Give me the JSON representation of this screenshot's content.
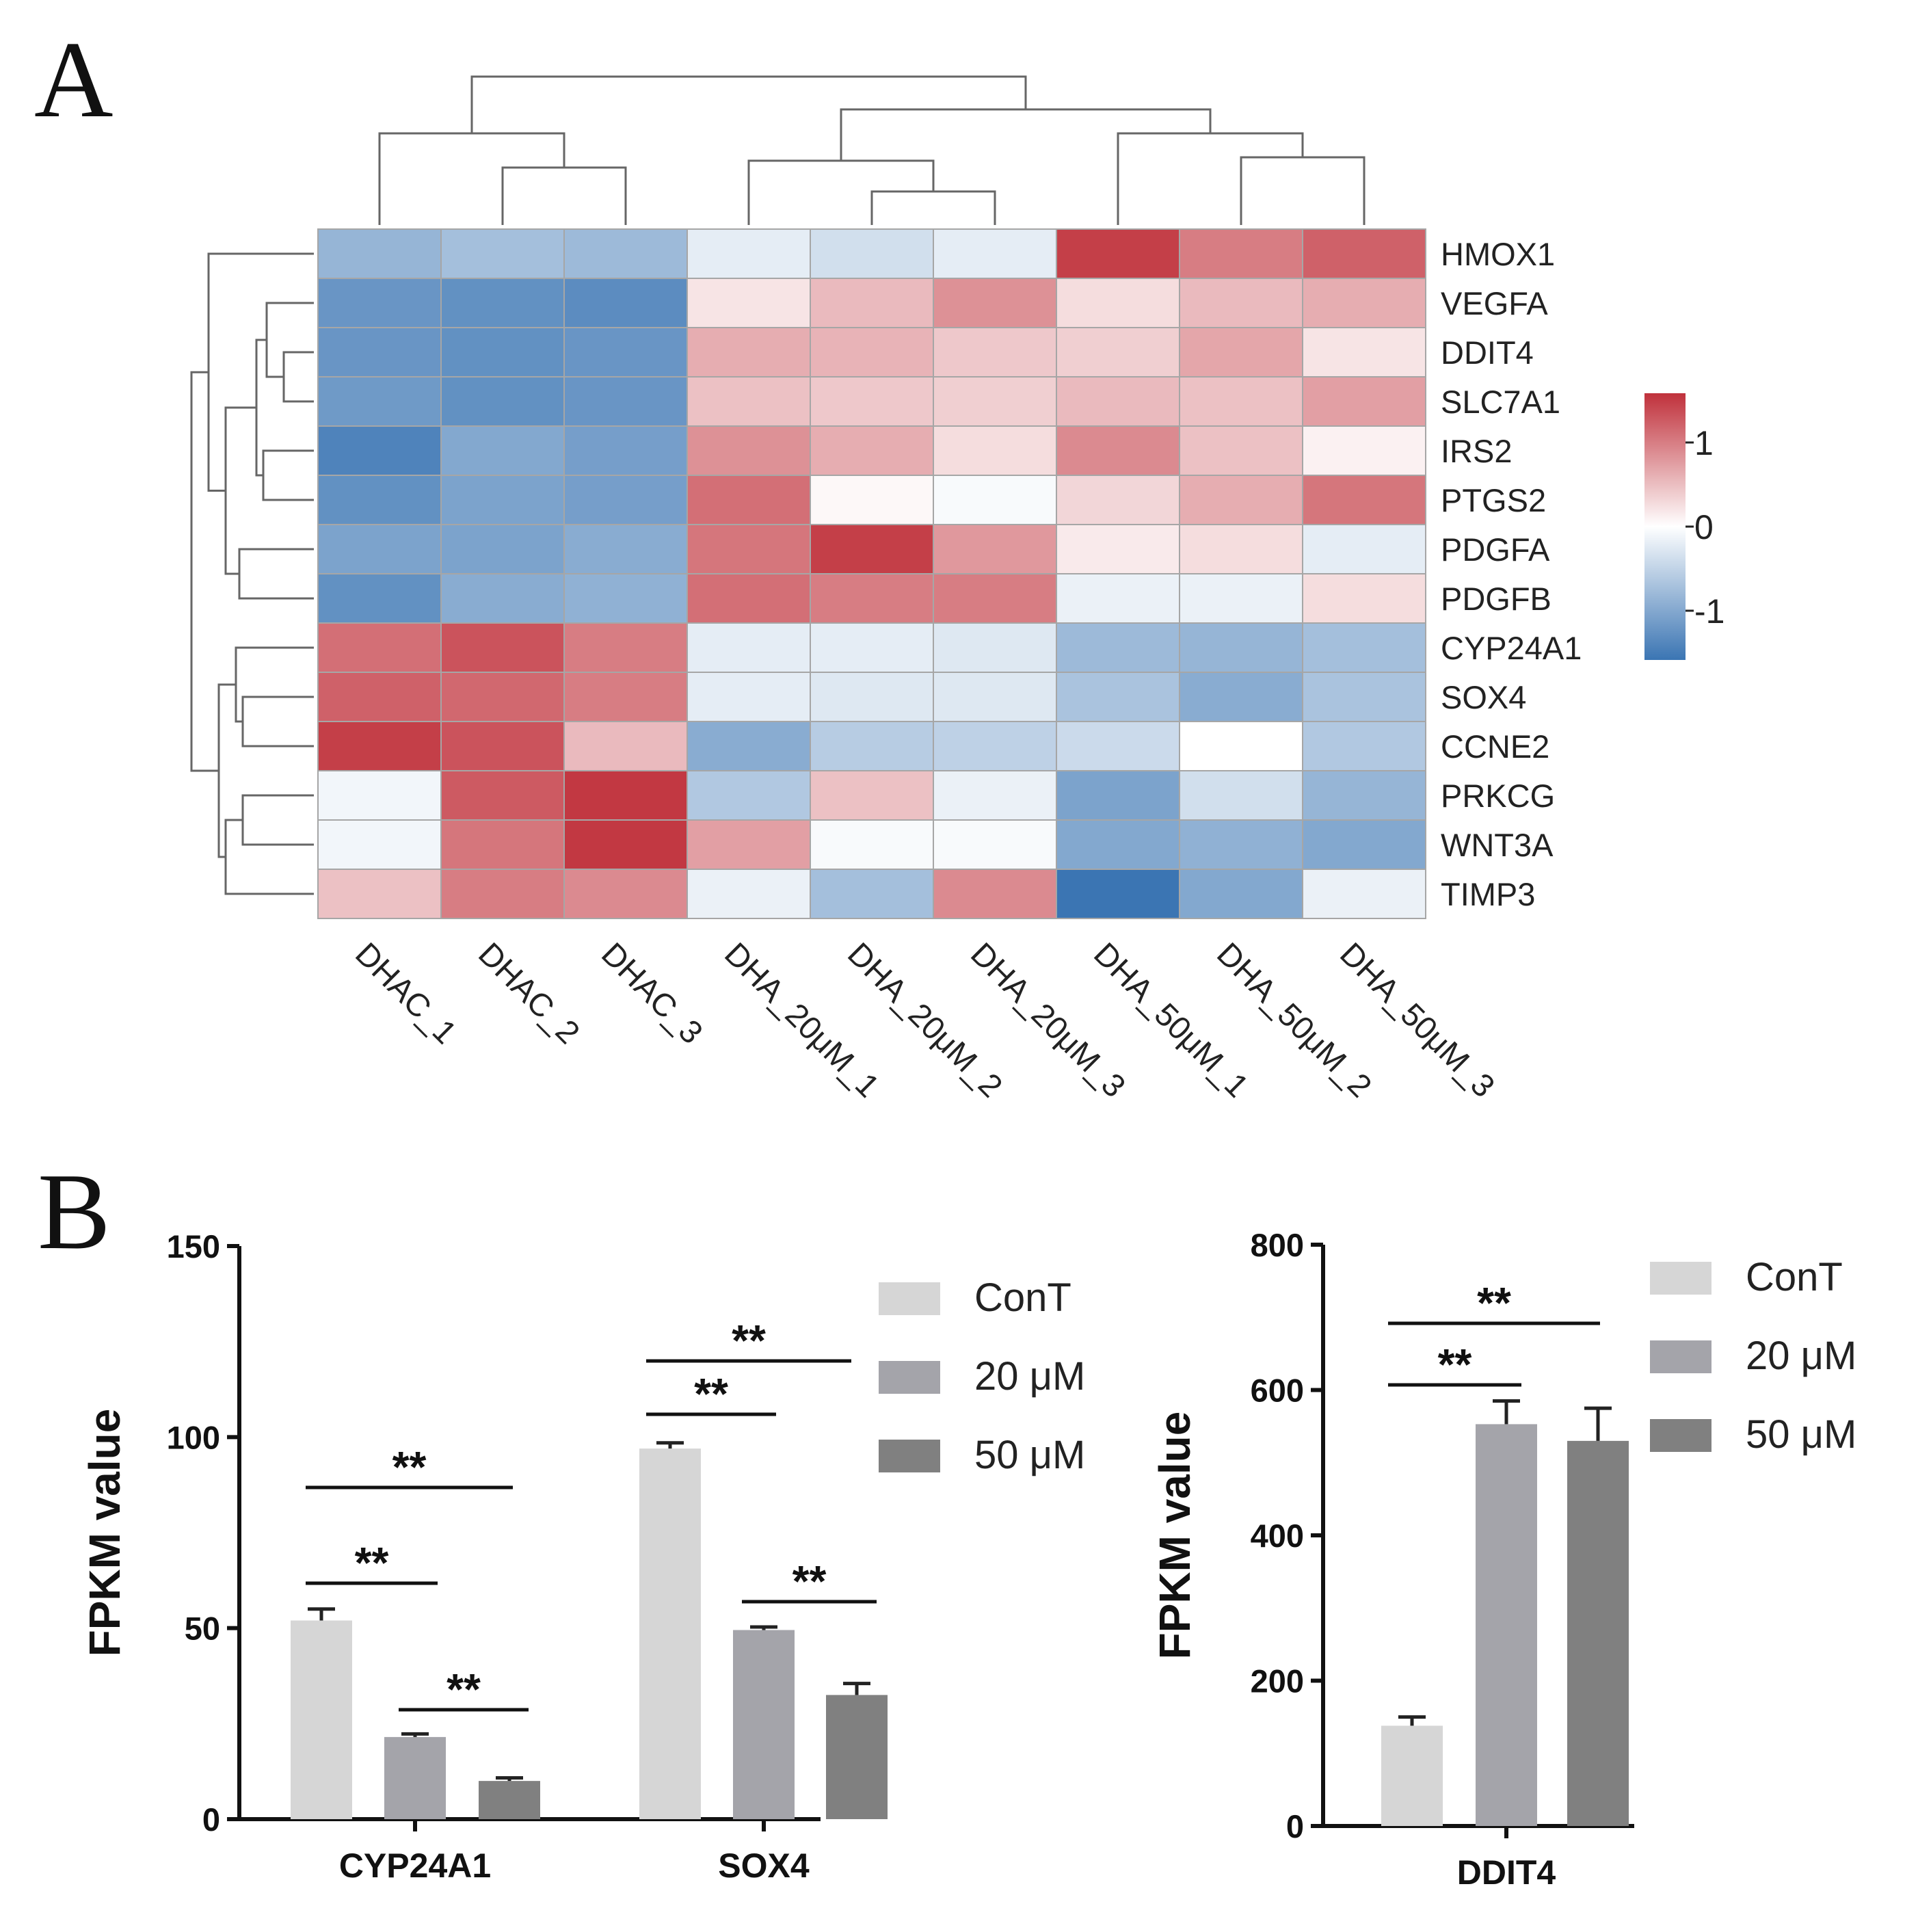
{
  "panels": {
    "a_label": "A",
    "b_label": "B"
  },
  "colors": {
    "heat_low": "#3b75b3",
    "heat_mid": "#ffffff",
    "heat_high": "#c0313b",
    "cell_border": "#a6a6a6",
    "dendrogram": "#666666",
    "bar_cont": "#d6d6d6",
    "bar_20": "#a4a4aa",
    "bar_50": "#808080"
  },
  "chart_data": [
    {
      "type": "heatmap",
      "rows": [
        "HMOX1",
        "VEGFA",
        "DDIT4",
        "SLC7A1",
        "IRS2",
        "PTGS2",
        "PDGFA",
        "PDGFB",
        "CYP24A1",
        "SOX4",
        "CCNE2",
        "PRKCG",
        "WNT3A",
        "TIMP3"
      ],
      "columns": [
        "DHAC_1",
        "DHAC_2",
        "DHAC_3",
        "DHA_20μM_1",
        "DHA_20μM_2",
        "DHA_20μM_3",
        "DHA_50μM_1",
        "DHA_50μM_2",
        "DHA_50μM_3"
      ],
      "values": [
        [
          -0.8,
          -0.7,
          -0.75,
          -0.2,
          -0.35,
          -0.2,
          1.4,
          0.95,
          1.15
        ],
        [
          -1.15,
          -1.2,
          -1.25,
          0.2,
          0.5,
          0.8,
          0.25,
          0.5,
          0.6
        ],
        [
          -1.15,
          -1.2,
          -1.15,
          0.6,
          0.55,
          0.4,
          0.35,
          0.65,
          0.2
        ],
        [
          -1.1,
          -1.2,
          -1.15,
          0.45,
          0.4,
          0.35,
          0.5,
          0.45,
          0.7
        ],
        [
          -1.35,
          -0.95,
          -1.05,
          0.8,
          0.6,
          0.25,
          0.85,
          0.45,
          0.1
        ],
        [
          -1.2,
          -1.0,
          -1.05,
          1.05,
          0.05,
          -0.05,
          0.3,
          0.6,
          1.0
        ],
        [
          -1.0,
          -1.0,
          -0.9,
          1.0,
          1.4,
          0.75,
          0.15,
          0.25,
          -0.2
        ],
        [
          -1.2,
          -0.9,
          -0.85,
          1.05,
          0.95,
          0.95,
          -0.15,
          -0.15,
          0.25
        ],
        [
          1.05,
          1.25,
          0.95,
          -0.2,
          -0.2,
          -0.25,
          -0.75,
          -0.8,
          -0.7
        ],
        [
          1.15,
          1.1,
          0.95,
          -0.2,
          -0.25,
          -0.25,
          -0.65,
          -0.9,
          -0.65
        ],
        [
          1.4,
          1.25,
          0.5,
          -0.9,
          -0.55,
          -0.5,
          -0.4,
          0.0,
          -0.6
        ],
        [
          -0.1,
          1.2,
          1.45,
          -0.6,
          0.45,
          -0.15,
          -1.0,
          -0.35,
          -0.8
        ],
        [
          -0.1,
          1.0,
          1.45,
          0.7,
          -0.05,
          -0.05,
          -0.95,
          -0.85,
          -0.95
        ],
        [
          0.45,
          0.95,
          0.85,
          -0.15,
          -0.7,
          0.85,
          -1.5,
          -0.95,
          -0.15
        ]
      ],
      "colorbar": {
        "ticks": [
          "1",
          "0",
          "-1"
        ],
        "range": [
          -1.5,
          1.5
        ]
      }
    },
    {
      "type": "bar",
      "categories": [
        "CYP24A1",
        "SOX4"
      ],
      "series": [
        {
          "name": "ConT",
          "values": [
            52,
            97
          ],
          "errors": [
            3,
            1.5
          ]
        },
        {
          "name": "20 μM",
          "values": [
            21.5,
            49.5
          ],
          "errors": [
            0.8,
            0.8
          ]
        },
        {
          "name": "50 μM",
          "values": [
            10,
            32.5
          ],
          "errors": [
            0.8,
            3
          ]
        }
      ],
      "ylabel": "FPKM value",
      "ylim": [
        0,
        150
      ],
      "yticks": [
        "0",
        "50",
        "100",
        "150"
      ],
      "legend_position": "top-right",
      "significance": [
        {
          "category": 0,
          "from": 0,
          "to": 1,
          "label": "**"
        },
        {
          "category": 0,
          "from": 0,
          "to": 2,
          "label": "**"
        },
        {
          "category": 0,
          "from": 1,
          "to": 2,
          "label": "**"
        },
        {
          "category": 1,
          "from": 0,
          "to": 1,
          "label": "**"
        },
        {
          "category": 1,
          "from": 0,
          "to": 2,
          "label": "**"
        },
        {
          "category": 1,
          "from": 1,
          "to": 2,
          "label": "**"
        }
      ]
    },
    {
      "type": "bar",
      "categories": [
        "DDIT4"
      ],
      "series": [
        {
          "name": "ConT",
          "values": [
            138
          ],
          "errors": [
            12
          ]
        },
        {
          "name": "20 μM",
          "values": [
            553
          ],
          "errors": [
            32
          ]
        },
        {
          "name": "50 μM",
          "values": [
            530
          ],
          "errors": [
            45
          ]
        }
      ],
      "ylabel": "FPKM value",
      "ylim": [
        0,
        800
      ],
      "yticks": [
        "0",
        "200",
        "400",
        "600",
        "800"
      ],
      "legend_position": "top-right",
      "significance": [
        {
          "category": 0,
          "from": 0,
          "to": 1,
          "label": "**"
        },
        {
          "category": 0,
          "from": 0,
          "to": 2,
          "label": "**"
        }
      ]
    }
  ]
}
